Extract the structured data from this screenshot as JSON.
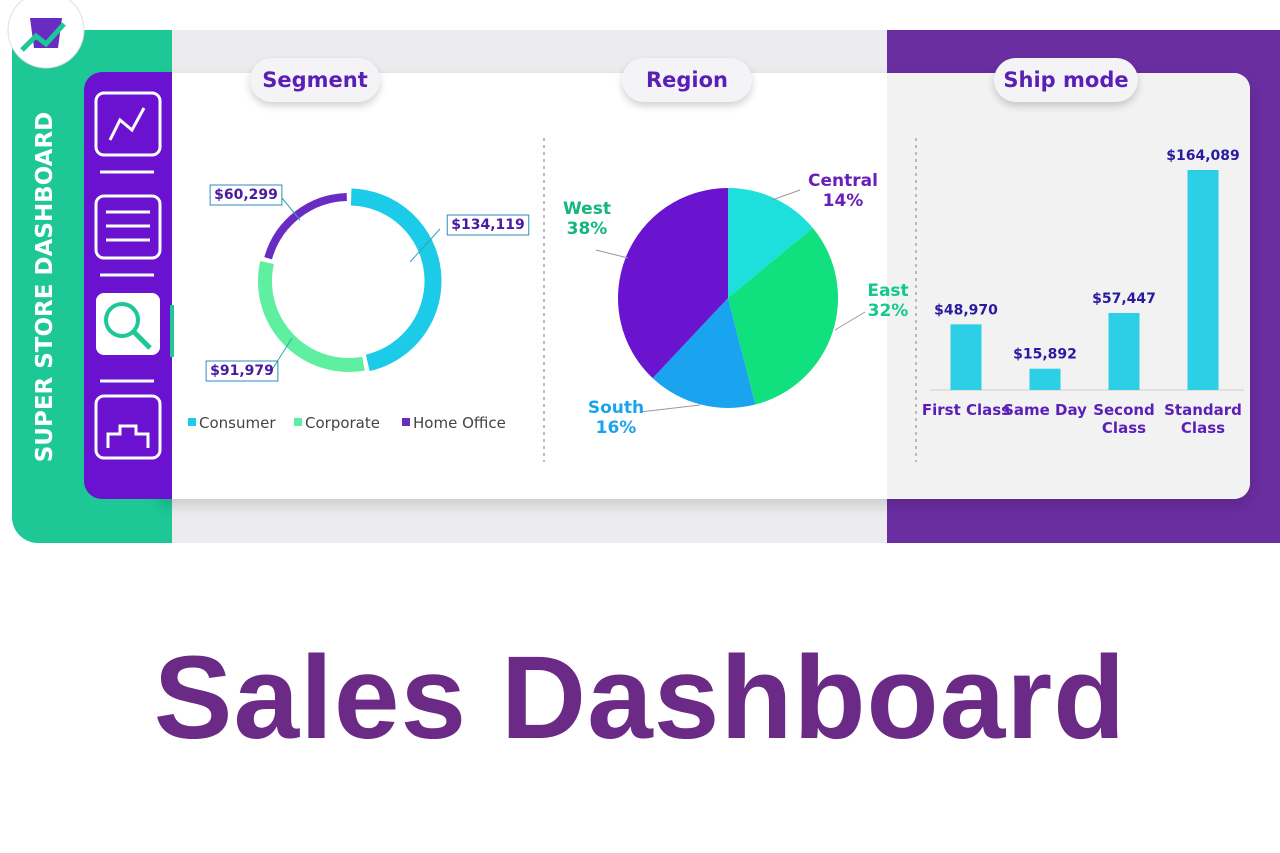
{
  "sidebar_title": "SUPER STORE DASHBOARD",
  "page_title": "Sales Dashboard",
  "chart_data": [
    {
      "type": "donut",
      "title": "Segment",
      "categories": [
        "Consumer",
        "Corporate",
        "Home Office"
      ],
      "values": [
        134119,
        91979,
        60299
      ],
      "value_labels": [
        "$134,119",
        "$91,979",
        "$60,299"
      ],
      "colors": [
        "#1ccbe8",
        "#5ef0a0",
        "#6a2bc2"
      ]
    },
    {
      "type": "pie",
      "title": "Region",
      "categories": [
        "Central",
        "East",
        "South",
        "West"
      ],
      "values": [
        14,
        32,
        16,
        38
      ],
      "value_labels": [
        "14%",
        "32%",
        "16%",
        "38%"
      ],
      "colors": [
        "#1de0dc",
        "#10e07e",
        "#1aa4f0",
        "#6a14d0"
      ]
    },
    {
      "type": "bar",
      "title": "Ship mode",
      "categories": [
        "First Class",
        "Same Day",
        "Second Class",
        "Standard Class"
      ],
      "values": [
        48970,
        15892,
        57447,
        164089
      ],
      "value_labels": [
        "$48,970",
        "$15,892",
        "$57,447",
        "$164,089"
      ],
      "color": "#2ccfe6"
    }
  ]
}
